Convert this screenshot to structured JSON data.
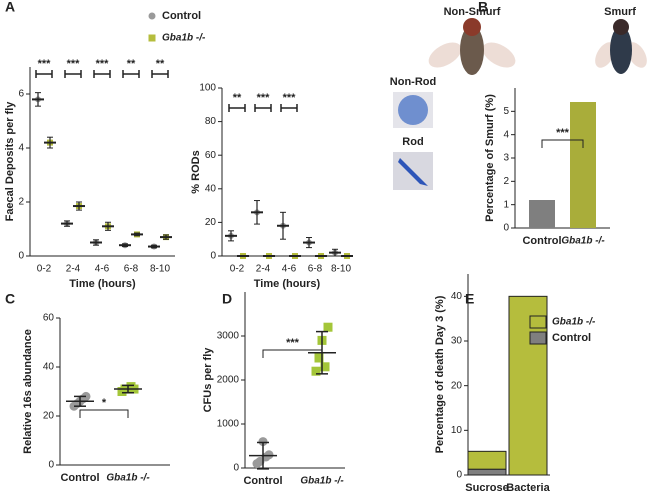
{
  "chart_data": [
    {
      "panel": "A",
      "type": "dot",
      "ylabel": "Faecal Deposits per fly",
      "xlabel": "Time (hours)",
      "categories": [
        "0-2",
        "2-4",
        "4-6",
        "6-8",
        "8-10"
      ],
      "series": [
        {
          "name": "Control",
          "color": "#9a9a9a",
          "values": [
            5.8,
            1.2,
            0.5,
            0.4,
            0.35
          ],
          "errors": [
            0.25,
            0.1,
            0.1,
            0.05,
            0.05
          ]
        },
        {
          "name": "Gba1b -/-",
          "color": "#b5bd3d",
          "values": [
            4.2,
            1.85,
            1.1,
            0.8,
            0.7
          ],
          "errors": [
            0.2,
            0.15,
            0.15,
            0.05,
            0.08
          ]
        }
      ],
      "ylim": [
        0,
        7
      ],
      "yticks": [
        0,
        2,
        4,
        6
      ],
      "significance": [
        "***",
        "***",
        "***",
        "**",
        "**"
      ]
    },
    {
      "type": "dot",
      "ylabel": "% RODs",
      "xlabel": "Time (hours)",
      "categories": [
        "0-2",
        "2-4",
        "4-6",
        "6-8",
        "8-10"
      ],
      "series": [
        {
          "color": "#9a9a9a",
          "values": [
            12,
            26,
            18,
            8,
            2
          ],
          "errors": [
            3,
            7,
            8,
            3,
            2
          ]
        },
        {
          "color": "#b5bd3d",
          "values": [
            0,
            0,
            0,
            0,
            0
          ],
          "errors": [
            0,
            0,
            0,
            0,
            0
          ]
        }
      ],
      "ylim": [
        0,
        100
      ],
      "yticks": [
        0,
        20,
        40,
        60,
        80,
        100
      ],
      "significance": [
        "**",
        "***",
        "***",
        null,
        null
      ],
      "image_labels": [
        "Non-Rod",
        "Rod"
      ]
    },
    {
      "panel": "B",
      "type": "bar",
      "ylabel": "Percentage of Smurf (%)",
      "categories": [
        "Control",
        "Gba1b -/-"
      ],
      "values": [
        1.2,
        5.4
      ],
      "colors": [
        "#7f7f7f",
        "#a9ad3a"
      ],
      "ylim": [
        0,
        6
      ],
      "yticks": [
        0,
        1,
        2,
        3,
        4,
        5
      ],
      "significance": "***",
      "image_labels": [
        "Non-Smurf",
        "Smurf"
      ]
    },
    {
      "panel": "C",
      "type": "group_dot",
      "ylabel": "Relative 16s abundance",
      "categories": [
        "Control",
        "Gba1b -/-"
      ],
      "colors": [
        "#9a9a9a",
        "#a4c639"
      ],
      "points": [
        [
          24,
          25,
          26,
          27,
          28
        ],
        [
          30,
          31,
          31,
          32,
          31
        ]
      ],
      "values": [
        26,
        31
      ],
      "errors": [
        2,
        1.5
      ],
      "ylim": [
        0,
        60
      ],
      "yticks": [
        0,
        20,
        40,
        60
      ],
      "significance": "*"
    },
    {
      "panel": "D",
      "type": "group_dot",
      "ylabel": "CFUs per fly",
      "categories": [
        "Control",
        "Gba1b -/-"
      ],
      "colors": [
        "#9a9a9a",
        "#a4c639"
      ],
      "points": [
        [
          100,
          150,
          600,
          250,
          300
        ],
        [
          2200,
          2500,
          2900,
          2300,
          3200
        ]
      ],
      "values": [
        280,
        2620
      ],
      "errors": [
        300,
        480
      ],
      "ylim": [
        0,
        4000
      ],
      "yticks": [
        0,
        1000,
        2000,
        3000
      ],
      "significance": "***"
    },
    {
      "panel": "E",
      "type": "stacked_bar",
      "ylabel": "Percentage of death Day 3 (%)",
      "categories": [
        "Sucrose",
        "Bacteria"
      ],
      "series": [
        {
          "name": "Control",
          "color": "#7f7f7f",
          "values": [
            1.3,
            0
          ]
        },
        {
          "name": "Gba1b -/-",
          "color": "#b5bd3d",
          "values": [
            4,
            40
          ]
        }
      ],
      "ylim": [
        0,
        45
      ],
      "yticks": [
        0,
        10,
        20,
        30,
        40
      ]
    }
  ]
}
